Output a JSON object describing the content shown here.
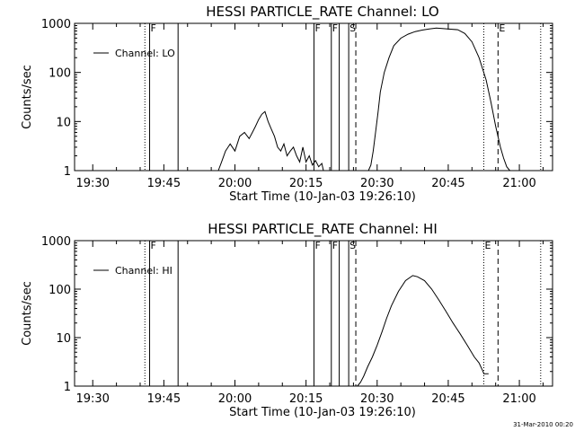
{
  "footer": {
    "datestamp": "31-Mar-2010 00:20"
  },
  "chart_data": [
    {
      "type": "line",
      "title": "HESSI PARTICLE_RATE Channel: LO",
      "xlabel": "Start Time (10-Jan-03 19:26:10)",
      "ylabel": "Counts/sec",
      "y_scale": "log",
      "xlim": [
        "19:26:10",
        "21:07:00"
      ],
      "ylim": [
        1,
        1000
      ],
      "x_ticks": [
        "19:30",
        "19:45",
        "20:00",
        "20:15",
        "20:30",
        "20:45",
        "21:00"
      ],
      "y_ticks": [
        "1",
        "10",
        "100",
        "1000"
      ],
      "legend": {
        "position": "top-left",
        "entries": [
          "Channel: LO"
        ]
      },
      "series": [
        {
          "name": "Channel: LO",
          "x": [
            "19:56:30",
            "19:57:10",
            "19:58:00",
            "19:59:00",
            "20:00:00",
            "20:01:00",
            "20:02:00",
            "20:03:00",
            "20:03:40",
            "20:04:20",
            "20:05:00",
            "20:05:40",
            "20:06:20",
            "20:07:00",
            "20:07:40",
            "20:08:20",
            "20:09:00",
            "20:09:40",
            "20:10:20",
            "20:11:00",
            "20:11:40",
            "20:12:20",
            "20:13:00",
            "20:13:40",
            "20:14:20",
            "20:15:00",
            "20:15:40",
            "20:16:20",
            "20:17:00",
            "20:17:40",
            "20:18:20",
            "20:18:40",
            "20:28:10",
            "20:28:40",
            "20:29:10",
            "20:29:40",
            "20:30:10",
            "20:30:40",
            "20:31:30",
            "20:32:30",
            "20:33:30",
            "20:35:00",
            "20:36:30",
            "20:38:00",
            "20:39:30",
            "20:41:00",
            "20:42:30",
            "20:44:00",
            "20:45:30",
            "20:47:00",
            "20:48:30",
            "20:50:00",
            "20:51:30",
            "20:53:00",
            "20:54:00",
            "20:55:00",
            "20:56:00",
            "20:56:40",
            "20:57:20",
            "20:58:00"
          ],
          "y": [
            1,
            1.5,
            2.5,
            3.5,
            2.5,
            5,
            6,
            4.5,
            6,
            8,
            11,
            14,
            16,
            10,
            7,
            5,
            3,
            2.5,
            3.5,
            2,
            2.5,
            3,
            2,
            1.5,
            3,
            1.5,
            2,
            1.3,
            1.6,
            1.2,
            1.4,
            1,
            1,
            1.3,
            2.5,
            6,
            15,
            40,
            100,
            200,
            350,
            500,
            600,
            680,
            730,
            770,
            800,
            780,
            760,
            740,
            620,
            420,
            200,
            70,
            25,
            8,
            3,
            1.8,
            1.2,
            1
          ]
        }
      ],
      "annotations": [
        {
          "label": "F",
          "x": "19:42:00",
          "line": "solid"
        },
        {
          "label": "F",
          "x": "20:16:40",
          "line": "solid"
        },
        {
          "label": "F",
          "x": "20:20:20",
          "line": "solid"
        },
        {
          "label": "S",
          "x": "20:24:00",
          "line": "solid"
        },
        {
          "label": "",
          "x": "19:41:00",
          "line": "dotted"
        },
        {
          "label": "",
          "x": "19:48:00",
          "line": "solid"
        },
        {
          "label": "",
          "x": "20:22:00",
          "line": "solid"
        },
        {
          "label": "",
          "x": "20:25:30",
          "line": "dashed"
        },
        {
          "label": "",
          "x": "20:52:30",
          "line": "dotted"
        },
        {
          "label": "E",
          "x": "20:55:30",
          "line": "dashed"
        },
        {
          "label": "",
          "x": "21:04:30",
          "line": "dotted"
        }
      ]
    },
    {
      "type": "line",
      "title": "HESSI PARTICLE_RATE Channel: HI",
      "xlabel": "Start Time (10-Jan-03 19:26:10)",
      "ylabel": "Counts/sec",
      "y_scale": "log",
      "xlim": [
        "19:26:10",
        "21:07:00"
      ],
      "ylim": [
        1,
        1000
      ],
      "x_ticks": [
        "19:30",
        "19:45",
        "20:00",
        "20:15",
        "20:30",
        "20:45",
        "21:00"
      ],
      "y_ticks": [
        "1",
        "10",
        "100",
        "1000"
      ],
      "legend": {
        "position": "top-left",
        "entries": [
          "Channel: HI"
        ]
      },
      "series": [
        {
          "name": "Channel: HI",
          "x": [
            "20:25:50",
            "20:26:30",
            "20:27:10",
            "20:28:00",
            "20:29:00",
            "20:30:00",
            "20:31:00",
            "20:32:00",
            "20:33:00",
            "20:34:30",
            "20:36:00",
            "20:37:30",
            "20:38:30",
            "20:40:00",
            "20:41:30",
            "20:43:00",
            "20:44:30",
            "20:46:00",
            "20:47:30",
            "20:49:00",
            "20:50:30",
            "20:51:30",
            "20:52:20",
            "20:52:30",
            "20:53:00",
            "20:53:30"
          ],
          "y": [
            1,
            1.2,
            1.6,
            2.5,
            4,
            7,
            13,
            25,
            45,
            90,
            150,
            190,
            180,
            150,
            100,
            60,
            35,
            20,
            12,
            7,
            4,
            3,
            2,
            1.8,
            1.8,
            1.8
          ]
        }
      ],
      "annotations": [
        {
          "label": "F",
          "x": "19:42:00",
          "line": "solid"
        },
        {
          "label": "F",
          "x": "20:16:40",
          "line": "solid"
        },
        {
          "label": "F",
          "x": "20:20:20",
          "line": "solid"
        },
        {
          "label": "S",
          "x": "20:24:00",
          "line": "solid"
        },
        {
          "label": "",
          "x": "19:41:00",
          "line": "dotted"
        },
        {
          "label": "",
          "x": "19:48:00",
          "line": "solid"
        },
        {
          "label": "",
          "x": "20:22:00",
          "line": "solid"
        },
        {
          "label": "",
          "x": "20:25:30",
          "line": "dashed"
        },
        {
          "label": "E",
          "x": "20:52:30",
          "line": "dotted"
        },
        {
          "label": "",
          "x": "20:55:30",
          "line": "dashed"
        },
        {
          "label": "",
          "x": "21:04:30",
          "line": "dotted"
        }
      ]
    }
  ]
}
